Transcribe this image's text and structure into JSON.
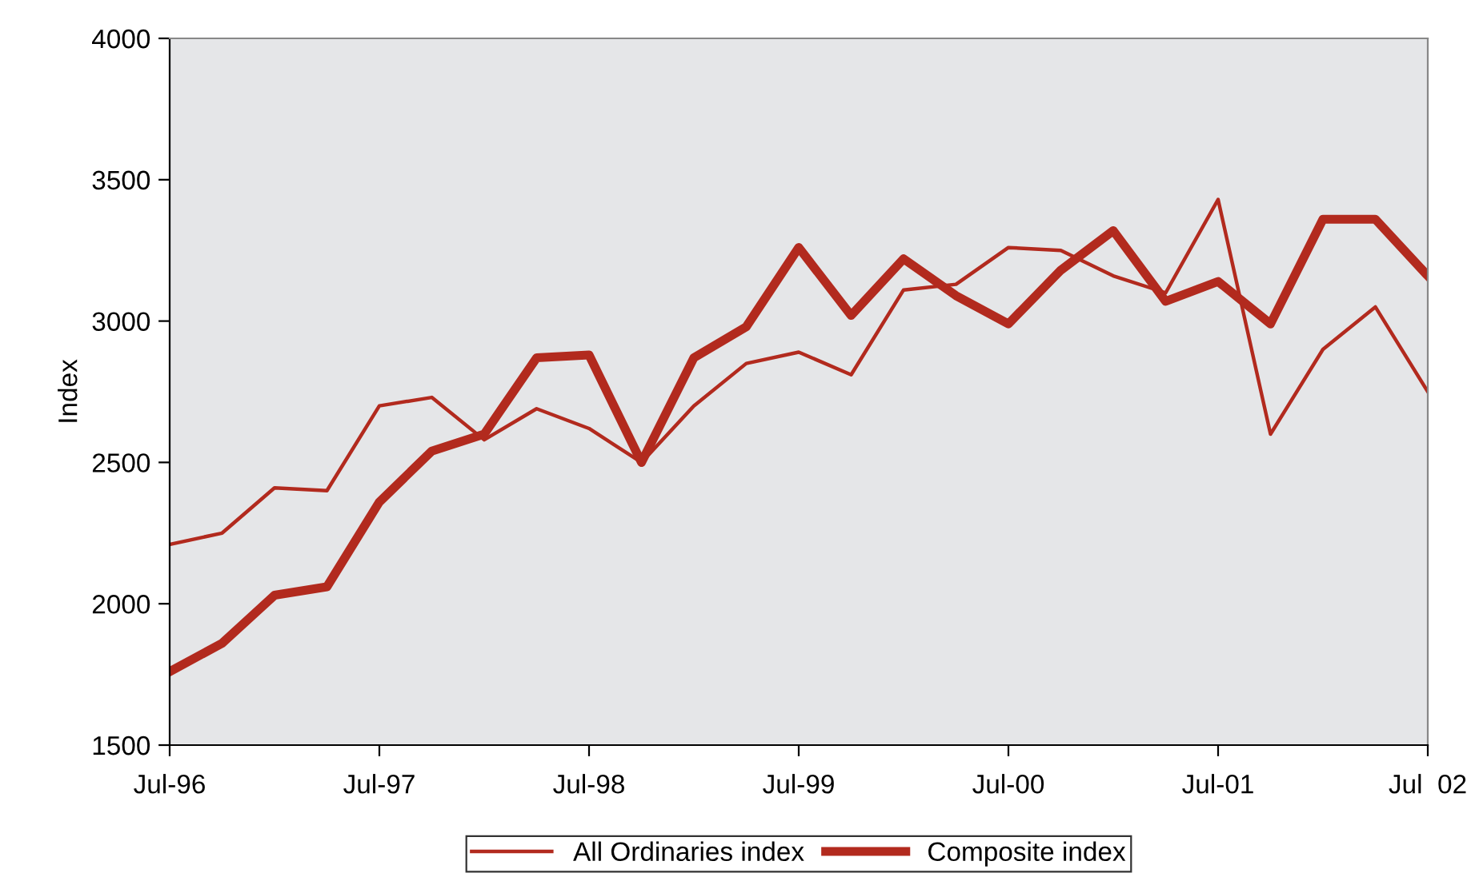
{
  "chart_data": {
    "type": "line",
    "ylabel": "Index",
    "categories": [
      "Jul-96",
      null,
      null,
      null,
      "Jul-97",
      null,
      null,
      null,
      "Jul-98",
      null,
      null,
      null,
      "Jul-99",
      null,
      null,
      null,
      "Jul-00",
      null,
      null,
      null,
      "Jul-01",
      null,
      null,
      null,
      "Jul  02"
    ],
    "series": [
      {
        "name": "All Ordinaries index",
        "color": "#b22a1e",
        "values": [
          2210,
          2250,
          2410,
          2400,
          2700,
          2730,
          2580,
          2690,
          2620,
          2500,
          2700,
          2850,
          2890,
          2810,
          3110,
          3130,
          3260,
          3250,
          3160,
          3100,
          3430,
          2600,
          2900,
          3050,
          2750
        ]
      },
      {
        "name": "Composite index",
        "color": "#b22a1e",
        "values": [
          1760,
          1860,
          2030,
          2060,
          2360,
          2540,
          2600,
          2870,
          2880,
          2500,
          2870,
          2980,
          3260,
          3020,
          3220,
          3090,
          2990,
          3180,
          3320,
          3070,
          3140,
          2990,
          3360,
          3360,
          3160
        ]
      }
    ],
    "ylim": [
      1500,
      4000
    ],
    "yticks": [
      1500,
      2000,
      2500,
      3000,
      3500,
      4000
    ],
    "grid": false,
    "legend": "bottom",
    "marker": "none",
    "line_style": "solid"
  }
}
